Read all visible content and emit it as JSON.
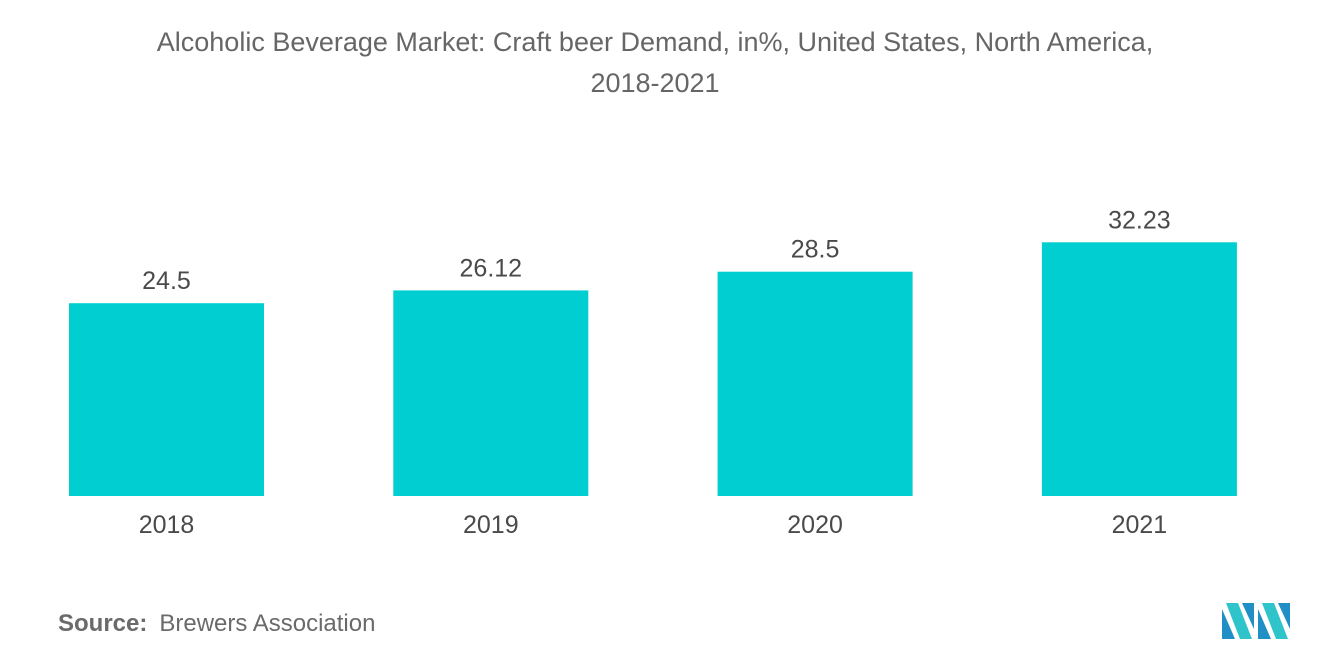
{
  "chart_data": {
    "type": "bar",
    "title": "Alcoholic Beverage Market: Craft beer Demand, in%, United States, North America,",
    "subtitle": "2018-2021",
    "categories": [
      "2018",
      "2019",
      "2020",
      "2021"
    ],
    "values": [
      24.5,
      26.12,
      28.5,
      32.23
    ],
    "value_labels": [
      "24.5",
      "26.12",
      "28.5",
      "32.23"
    ],
    "xlabel": "",
    "ylabel": "",
    "grid": false,
    "legend": "none",
    "bar_color": "#00CED1"
  },
  "source": {
    "label": "Source:",
    "text": "Brewers Association"
  },
  "logo": {
    "icon": "mordor-intelligence-logo",
    "colors": [
      "#1F8FC6",
      "#2EC4C9"
    ]
  }
}
